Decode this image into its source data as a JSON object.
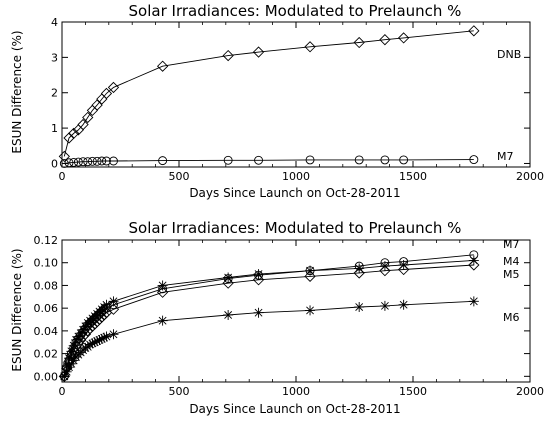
{
  "chart_data": [
    {
      "type": "line",
      "title": "Solar Irradiances: Modulated to Prelaunch %",
      "xlabel": "Days Since Launch on Oct-28-2011",
      "ylabel": "ESUN Difference (%)",
      "xlim": [
        0,
        2000
      ],
      "ylim": [
        -0.1,
        4.0
      ],
      "xticks": [
        0,
        500,
        1000,
        1500,
        2000
      ],
      "yticks": [
        0,
        1,
        2,
        3,
        4
      ],
      "grid": false,
      "series": [
        {
          "name": "DNB",
          "marker": "diamond",
          "x": [
            10,
            30,
            50,
            70,
            90,
            110,
            130,
            150,
            170,
            190,
            220,
            430,
            710,
            840,
            1060,
            1270,
            1380,
            1460,
            1760
          ],
          "y": [
            0.2,
            0.72,
            0.85,
            0.95,
            1.1,
            1.3,
            1.5,
            1.65,
            1.82,
            1.98,
            2.15,
            2.75,
            3.05,
            3.15,
            3.3,
            3.42,
            3.5,
            3.55,
            3.75
          ]
        },
        {
          "name": "M7",
          "marker": "circle",
          "x": [
            10,
            30,
            50,
            70,
            90,
            110,
            130,
            150,
            170,
            190,
            220,
            430,
            710,
            840,
            1060,
            1270,
            1380,
            1460,
            1760
          ],
          "y": [
            0.0,
            0.02,
            0.03,
            0.04,
            0.05,
            0.05,
            0.06,
            0.06,
            0.07,
            0.07,
            0.07,
            0.08,
            0.09,
            0.09,
            0.1,
            0.1,
            0.1,
            0.1,
            0.11
          ]
        }
      ]
    },
    {
      "type": "line",
      "title": "Solar Irradiances: Modulated to Prelaunch %",
      "xlabel": "Days Since Launch on Oct-28-2011",
      "ylabel": "ESUN Difference (%)",
      "xlim": [
        0,
        2000
      ],
      "ylim": [
        -0.005,
        0.12
      ],
      "xticks": [
        0,
        500,
        1000,
        1500,
        2000
      ],
      "yticks": [
        0.0,
        0.02,
        0.04,
        0.06,
        0.08,
        0.1,
        0.12
      ],
      "ytick_labels": [
        "0.00",
        "0.02",
        "0.04",
        "0.06",
        "0.08",
        "0.10",
        "0.12"
      ],
      "grid": false,
      "series": [
        {
          "name": "M7",
          "marker": "circle",
          "x": [
            10,
            20,
            30,
            40,
            50,
            60,
            70,
            80,
            90,
            100,
            110,
            120,
            130,
            140,
            150,
            160,
            170,
            180,
            190,
            220,
            430,
            710,
            840,
            1060,
            1270,
            1380,
            1460,
            1760
          ],
          "y": [
            0.0,
            0.008,
            0.014,
            0.02,
            0.025,
            0.03,
            0.033,
            0.036,
            0.039,
            0.042,
            0.045,
            0.047,
            0.049,
            0.051,
            0.053,
            0.055,
            0.057,
            0.059,
            0.06,
            0.063,
            0.077,
            0.086,
            0.089,
            0.093,
            0.097,
            0.1,
            0.101,
            0.107
          ]
        },
        {
          "name": "M4",
          "marker": "star",
          "x": [
            10,
            20,
            30,
            40,
            50,
            60,
            70,
            80,
            90,
            100,
            110,
            120,
            130,
            140,
            150,
            160,
            170,
            180,
            190,
            220,
            430,
            710,
            840,
            1060,
            1270,
            1380,
            1460,
            1760
          ],
          "y": [
            0.0,
            0.009,
            0.016,
            0.022,
            0.027,
            0.032,
            0.035,
            0.038,
            0.041,
            0.044,
            0.047,
            0.049,
            0.051,
            0.053,
            0.055,
            0.057,
            0.059,
            0.061,
            0.063,
            0.066,
            0.08,
            0.087,
            0.09,
            0.093,
            0.095,
            0.097,
            0.098,
            0.102
          ]
        },
        {
          "name": "M5",
          "marker": "diamond",
          "x": [
            10,
            20,
            30,
            40,
            50,
            60,
            70,
            80,
            90,
            100,
            110,
            120,
            130,
            140,
            150,
            160,
            170,
            180,
            190,
            220,
            430,
            710,
            840,
            1060,
            1270,
            1380,
            1460,
            1760
          ],
          "y": [
            0.0,
            0.007,
            0.013,
            0.018,
            0.022,
            0.026,
            0.029,
            0.032,
            0.035,
            0.037,
            0.04,
            0.042,
            0.044,
            0.046,
            0.048,
            0.05,
            0.052,
            0.054,
            0.056,
            0.059,
            0.074,
            0.082,
            0.085,
            0.088,
            0.091,
            0.093,
            0.094,
            0.098
          ]
        },
        {
          "name": "M6",
          "marker": "star",
          "x": [
            10,
            20,
            30,
            40,
            50,
            60,
            70,
            80,
            90,
            100,
            110,
            120,
            130,
            140,
            150,
            160,
            170,
            180,
            190,
            220,
            430,
            710,
            840,
            1060,
            1270,
            1380,
            1460,
            1760
          ],
          "y": [
            0.0,
            0.004,
            0.008,
            0.011,
            0.014,
            0.017,
            0.019,
            0.021,
            0.023,
            0.025,
            0.026,
            0.028,
            0.029,
            0.03,
            0.031,
            0.032,
            0.033,
            0.034,
            0.035,
            0.037,
            0.049,
            0.054,
            0.056,
            0.058,
            0.061,
            0.062,
            0.063,
            0.066
          ]
        }
      ]
    }
  ]
}
